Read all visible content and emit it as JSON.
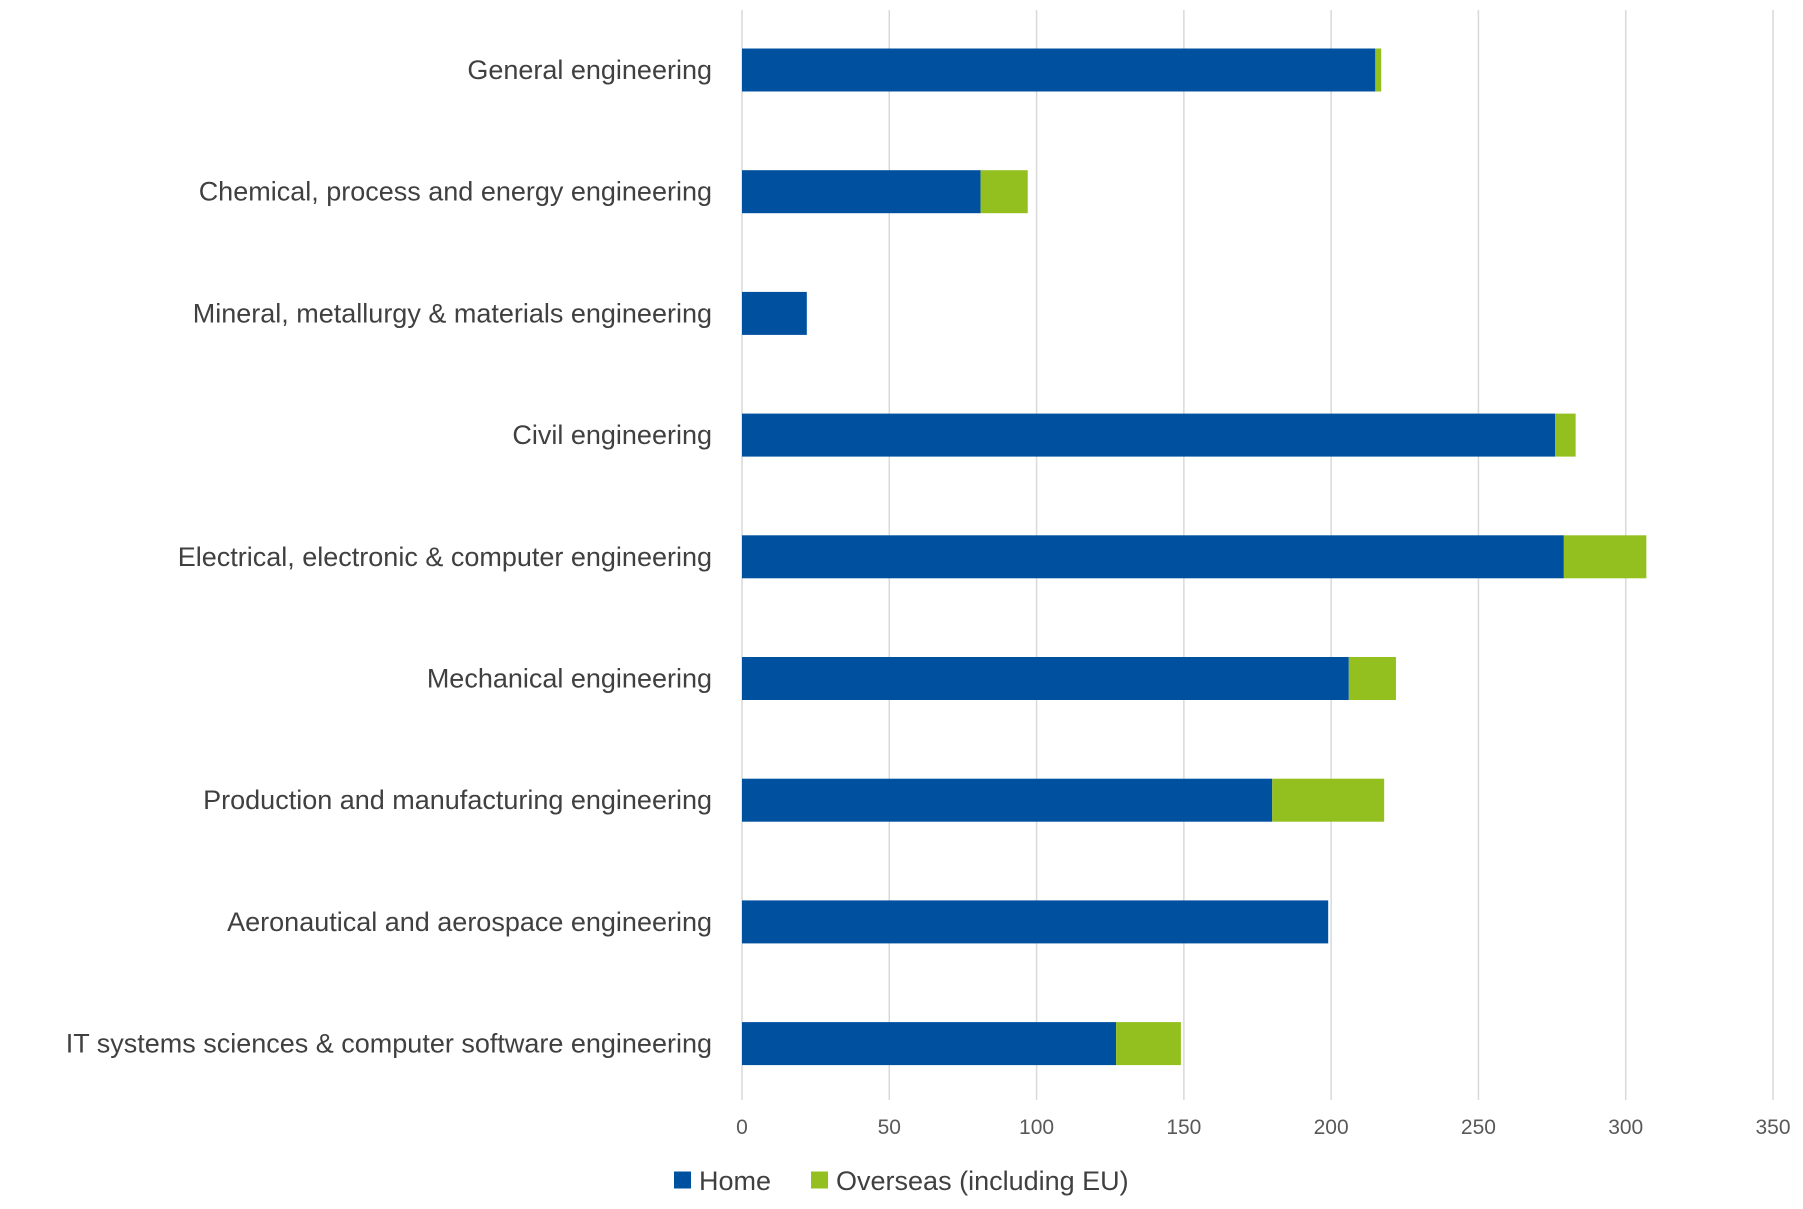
{
  "chart_data": {
    "type": "bar",
    "orientation": "horizontal",
    "stacked": true,
    "title": "",
    "xlabel": "",
    "ylabel": "",
    "categories": [
      "General engineering",
      "Chemical, process and energy engineering",
      "Mineral, metallurgy & materials engineering",
      "Civil engineering",
      "Electrical, electronic & computer engineering",
      "Mechanical engineering",
      "Production and manufacturing engineering",
      "Aeronautical and aerospace engineering",
      "IT systems sciences & computer software engineering"
    ],
    "series": [
      {
        "name": "Home",
        "color": "#0050A0",
        "values": [
          215,
          81,
          22,
          276,
          279,
          206,
          180,
          199,
          127
        ]
      },
      {
        "name": "Overseas (including EU)",
        "color": "#93C01F",
        "values": [
          2,
          16,
          0,
          7,
          28,
          16,
          38,
          0,
          22
        ]
      }
    ],
    "xlim": [
      0,
      350
    ],
    "x_ticks": [
      "0",
      "50",
      "100",
      "150",
      "200",
      "250",
      "300",
      "350"
    ],
    "grid": "vertical",
    "legend": "bottom"
  }
}
